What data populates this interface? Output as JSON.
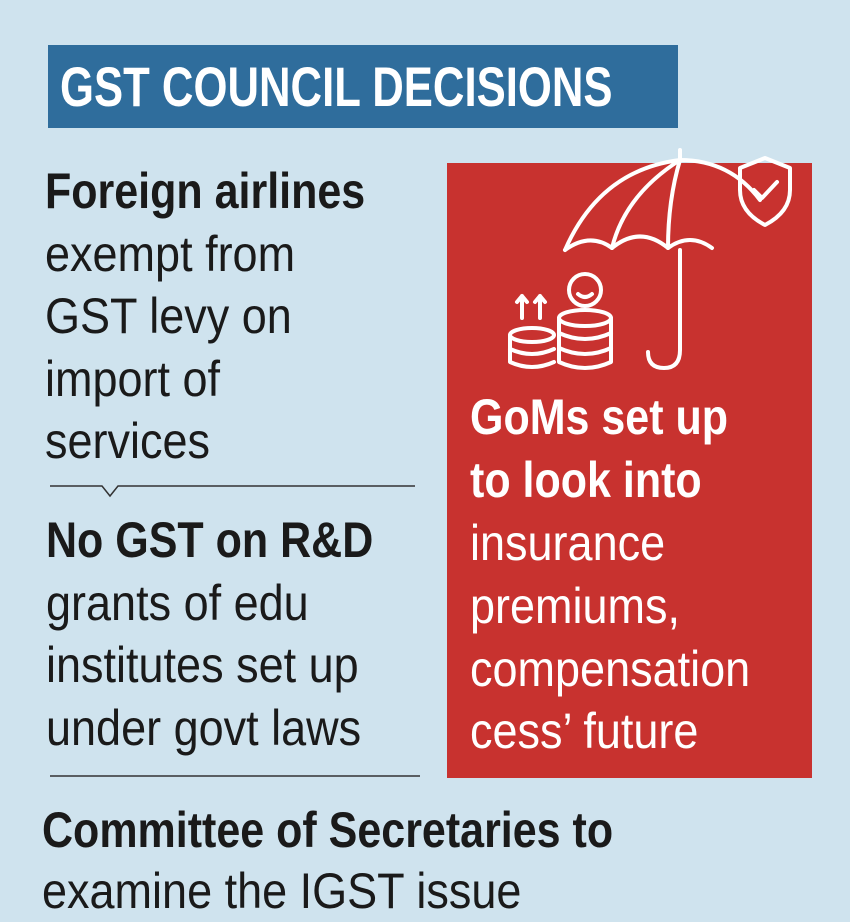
{
  "header": {
    "title": "GST COUNCIL DECISIONS"
  },
  "items": [
    {
      "heading": [
        "Foreign airlines"
      ],
      "lines": [
        "exempt from",
        "GST levy on",
        "import of",
        "services"
      ]
    },
    {
      "heading": [
        "No GST on R&D"
      ],
      "lines": [
        "grants of edu",
        "institutes set up",
        "under govt laws"
      ]
    },
    {
      "heading": [
        "GoMs set up",
        "to look into"
      ],
      "lines": [
        "insurance",
        "premiums,",
        "compensation",
        "cess’ future"
      ]
    },
    {
      "heading": [
        "Committee of Secretaries to"
      ],
      "lines": [
        "examine the IGST issue"
      ]
    }
  ]
}
